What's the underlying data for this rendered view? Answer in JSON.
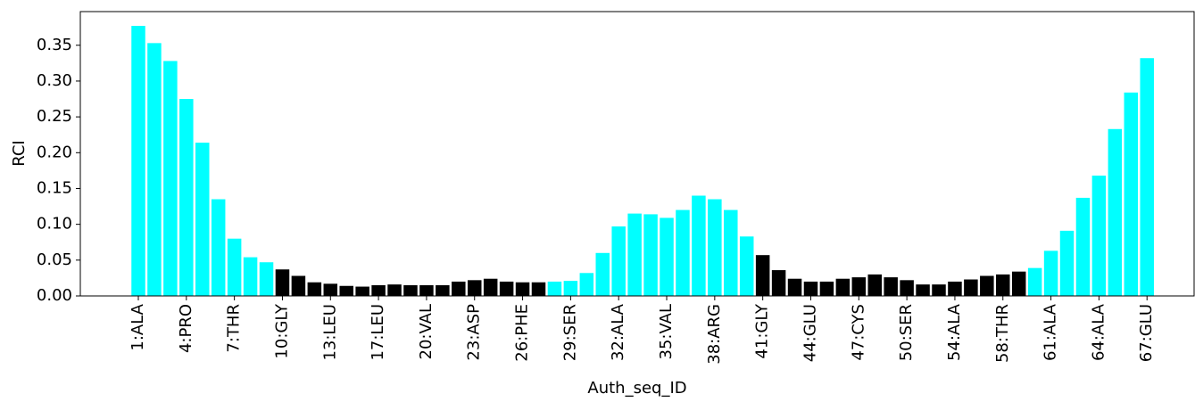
{
  "chart_data": {
    "type": "bar",
    "xlabel": "Auth_seq_ID",
    "ylabel": "RCI",
    "categories": [
      "1:ALA",
      null,
      null,
      "4:PRO",
      null,
      null,
      "7:THR",
      null,
      null,
      "10:GLY",
      null,
      null,
      "13:LEU",
      null,
      null,
      "17:LEU",
      null,
      null,
      "20:VAL",
      null,
      null,
      "23:ASP",
      null,
      null,
      "26:PHE",
      null,
      null,
      "29:SER",
      null,
      null,
      "32:ALA",
      null,
      null,
      "35:VAL",
      null,
      null,
      "38:ARG",
      null,
      null,
      "41:GLY",
      null,
      null,
      "44:GLU",
      null,
      null,
      "47:CYS",
      null,
      null,
      "50:SER",
      null,
      null,
      "54:ALA",
      null,
      null,
      "58:THR",
      null,
      null,
      "61:ALA",
      null,
      null,
      "64:ALA",
      null,
      null,
      "67:GLU"
    ],
    "values": [
      0.377,
      0.353,
      0.328,
      0.275,
      0.214,
      0.135,
      0.08,
      0.054,
      0.047,
      0.037,
      0.028,
      0.019,
      0.017,
      0.014,
      0.013,
      0.015,
      0.016,
      0.015,
      0.015,
      0.015,
      0.02,
      0.022,
      0.024,
      0.02,
      0.019,
      0.019,
      0.02,
      0.021,
      0.032,
      0.06,
      0.097,
      0.115,
      0.114,
      0.109,
      0.12,
      0.14,
      0.135,
      0.12,
      0.083,
      0.057,
      0.036,
      0.024,
      0.02,
      0.02,
      0.024,
      0.026,
      0.03,
      0.026,
      0.022,
      0.016,
      0.016,
      0.02,
      0.023,
      0.028,
      0.03,
      0.034,
      0.039,
      0.063,
      0.091,
      0.137,
      0.168,
      0.233,
      0.284,
      0.332
    ],
    "colors": [
      "#00ffff",
      "#00ffff",
      "#00ffff",
      "#00ffff",
      "#00ffff",
      "#00ffff",
      "#00ffff",
      "#00ffff",
      "#00ffff",
      "#000000",
      "#000000",
      "#000000",
      "#000000",
      "#000000",
      "#000000",
      "#000000",
      "#000000",
      "#000000",
      "#000000",
      "#000000",
      "#000000",
      "#000000",
      "#000000",
      "#000000",
      "#000000",
      "#000000",
      "#00ffff",
      "#00ffff",
      "#00ffff",
      "#00ffff",
      "#00ffff",
      "#00ffff",
      "#00ffff",
      "#00ffff",
      "#00ffff",
      "#00ffff",
      "#00ffff",
      "#00ffff",
      "#00ffff",
      "#000000",
      "#000000",
      "#000000",
      "#000000",
      "#000000",
      "#000000",
      "#000000",
      "#000000",
      "#000000",
      "#000000",
      "#000000",
      "#000000",
      "#000000",
      "#000000",
      "#000000",
      "#000000",
      "#000000",
      "#00ffff",
      "#00ffff",
      "#00ffff",
      "#00ffff",
      "#00ffff",
      "#00ffff",
      "#00ffff",
      "#00ffff"
    ],
    "ylim": [
      0,
      0.397
    ],
    "yticks": [
      {
        "value": 0,
        "label": "0.00"
      },
      {
        "value": 0.05,
        "label": "0.05"
      },
      {
        "value": 0.1,
        "label": "0.10"
      },
      {
        "value": 0.15,
        "label": "0.15"
      },
      {
        "value": 0.2,
        "label": "0.20"
      },
      {
        "value": 0.25,
        "label": "0.25"
      },
      {
        "value": 0.3,
        "label": "0.30"
      },
      {
        "value": 0.35,
        "label": "0.35"
      }
    ],
    "grid": false
  }
}
